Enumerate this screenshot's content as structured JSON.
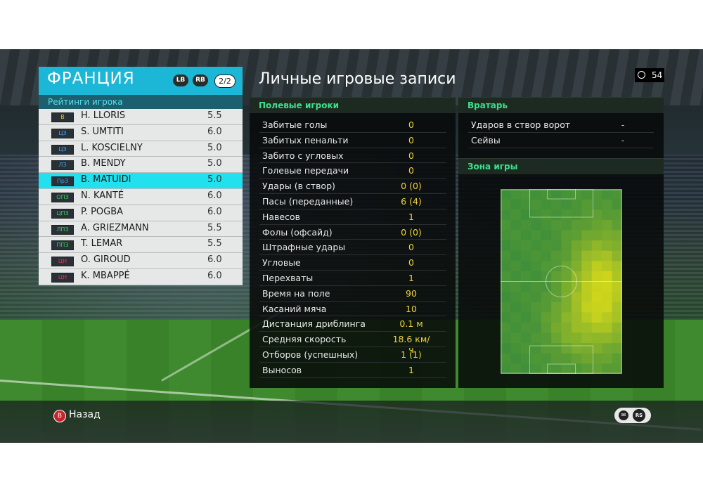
{
  "team": {
    "name": "ФРАНЦИЯ",
    "lb_label": "LB",
    "rb_label": "RB",
    "page_indicator": "2/2",
    "ratings_header": "Рейтинги игрока",
    "players": [
      {
        "pos": "В",
        "pos_color": "#f0c030",
        "name": "H. LLORIS",
        "rating": "5.5"
      },
      {
        "pos": "ЦЗ",
        "pos_color": "#3aa0ff",
        "name": "S. UMTITI",
        "rating": "6.0"
      },
      {
        "pos": "ЦЗ",
        "pos_color": "#3aa0ff",
        "name": "L. KOSCIELNY",
        "rating": "5.0"
      },
      {
        "pos": "ЛЗ",
        "pos_color": "#3aa0ff",
        "name": "B. MENDY",
        "rating": "5.0"
      },
      {
        "pos": "ПрЗ",
        "pos_color": "#3aa0ff",
        "name": "B. MATUIDI",
        "rating": "5.0"
      },
      {
        "pos": "ОПЗ",
        "pos_color": "#3ad060",
        "name": "N. KANTÉ",
        "rating": "6.0"
      },
      {
        "pos": "ЦПЗ",
        "pos_color": "#3ad060",
        "name": "P. POGBA",
        "rating": "6.0"
      },
      {
        "pos": "ЛПЗ",
        "pos_color": "#3ad060",
        "name": "A. GRIEZMANN",
        "rating": "5.5"
      },
      {
        "pos": "ППЗ",
        "pos_color": "#3ad060",
        "name": "T. LEMAR",
        "rating": "5.5"
      },
      {
        "pos": "ЦН",
        "pos_color": "#e83048",
        "name": "O. GIROUD",
        "rating": "6.0"
      },
      {
        "pos": "ЦН",
        "pos_color": "#e83048",
        "name": "K. MBAPPÉ",
        "rating": "6.0"
      }
    ],
    "selected_index": 4
  },
  "title": "Личные игровые записи",
  "timer": "54",
  "field_players": {
    "header": "Полевые игроки",
    "stats": [
      {
        "label": "Забитые голы",
        "value": "0"
      },
      {
        "label": "Забитых пенальти",
        "value": "0"
      },
      {
        "label": "Забито с угловых",
        "value": "0"
      },
      {
        "label": "Голевые передачи",
        "value": "0"
      },
      {
        "label": "Удары (в створ)",
        "value": "0 (0)"
      },
      {
        "label": "Пасы (переданные)",
        "value": "6 (4)"
      },
      {
        "label": "Навесов",
        "value": "1"
      },
      {
        "label": "Фолы (офсайд)",
        "value": "0 (0)"
      },
      {
        "label": "Штрафные удары",
        "value": "0"
      },
      {
        "label": "Угловые",
        "value": "0"
      },
      {
        "label": "Перехваты",
        "value": "1"
      },
      {
        "label": "Время на поле",
        "value": "90"
      },
      {
        "label": "Касаний мяча",
        "value": "10"
      },
      {
        "label": "Дистанция дриблинга",
        "value": "0.1 м"
      },
      {
        "label": "Средняя скорость",
        "value": "18.6 км/ч"
      },
      {
        "label": "Отборов (успешных)",
        "value": "1 (1)"
      },
      {
        "label": "Выносов",
        "value": "1"
      }
    ]
  },
  "goalkeeper": {
    "header": "Вратарь",
    "stats": [
      {
        "label": "Ударов в створ ворот",
        "value": "-"
      },
      {
        "label": "Сейвы",
        "value": "-"
      }
    ]
  },
  "zone": {
    "header": "Зона игры"
  },
  "footer": {
    "back_button_glyph": "B",
    "back_label": "Назад",
    "rs_label": "RS"
  },
  "colors": {
    "accent": "#1cb6d6",
    "selected_row": "#22e1ef",
    "section_header_text": "#3be08a",
    "stat_value": "#f0d23a"
  }
}
